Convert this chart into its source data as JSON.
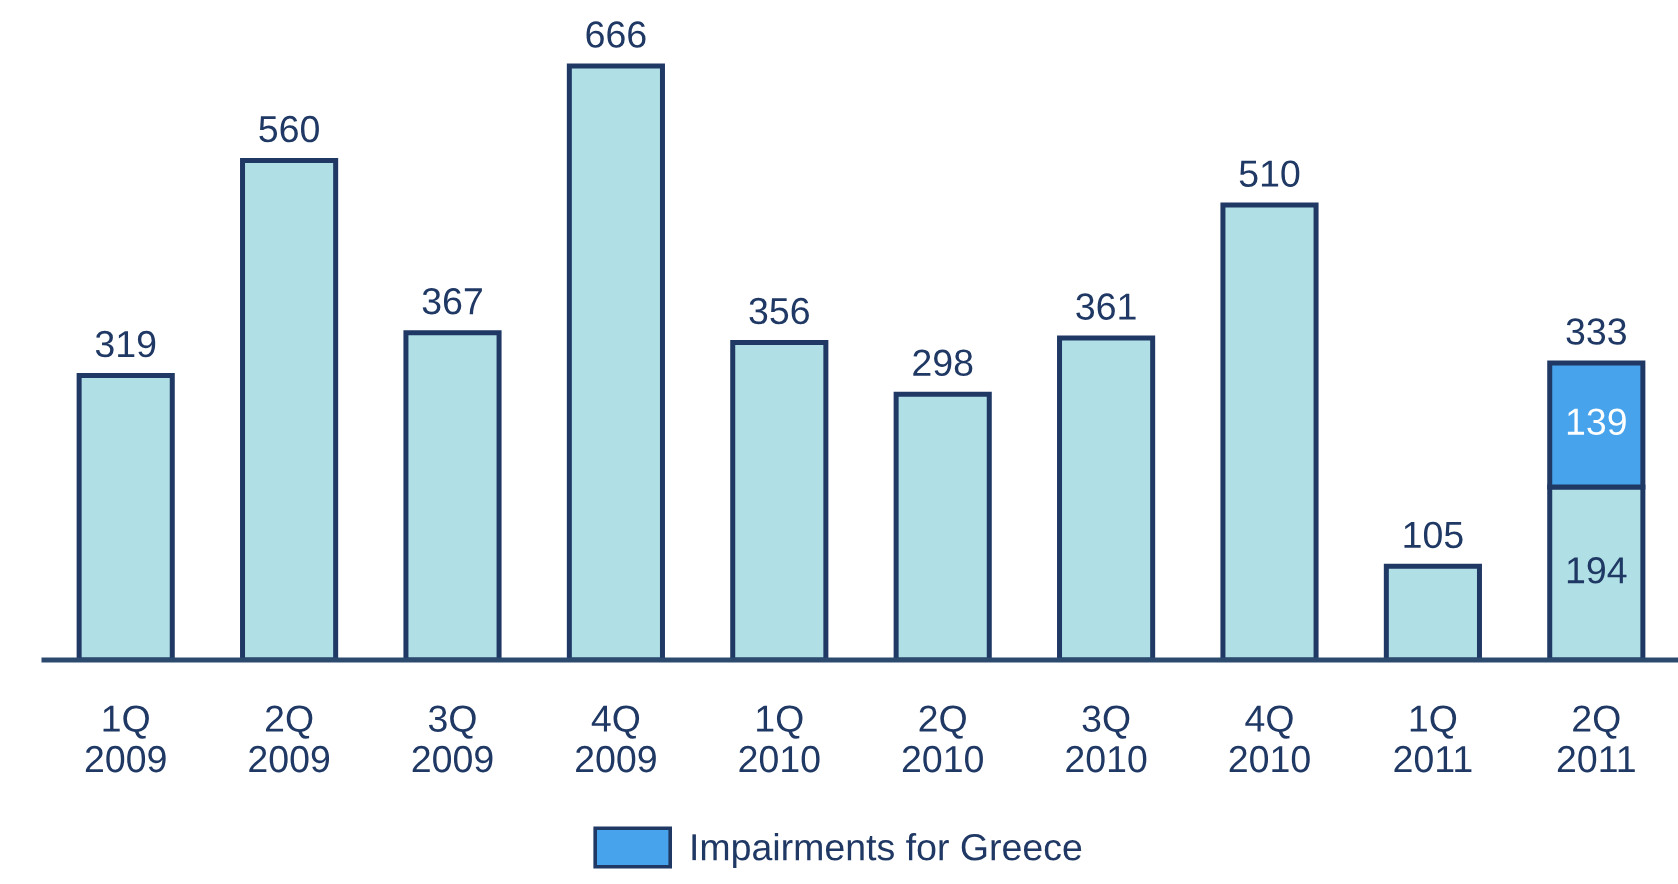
{
  "chart_data": {
    "type": "bar",
    "stacked": true,
    "categories": [
      "1Q\n2009",
      "2Q\n2009",
      "3Q\n2009",
      "4Q\n2009",
      "1Q\n2010",
      "2Q\n2010",
      "3Q\n2010",
      "4Q\n2010",
      "1Q\n2011",
      "2Q\n2011"
    ],
    "series": [
      {
        "color": "#b0dfe5",
        "values": [
          319,
          560,
          367,
          666,
          356,
          298,
          361,
          510,
          105,
          194
        ],
        "value_labels": [
          null,
          null,
          null,
          null,
          null,
          null,
          null,
          null,
          null,
          "194"
        ]
      },
      {
        "name": "Impairments for Greece",
        "color": "#47a3ec",
        "values": [
          null,
          null,
          null,
          null,
          null,
          null,
          null,
          null,
          null,
          139
        ],
        "value_labels": [
          null,
          null,
          null,
          null,
          null,
          null,
          null,
          null,
          null,
          "139"
        ]
      }
    ],
    "totals": [
      "319",
      "560",
      "367",
      "666",
      "356",
      "298",
      "361",
      "510",
      "105",
      "333"
    ],
    "grid": false,
    "legend": "bottom"
  }
}
